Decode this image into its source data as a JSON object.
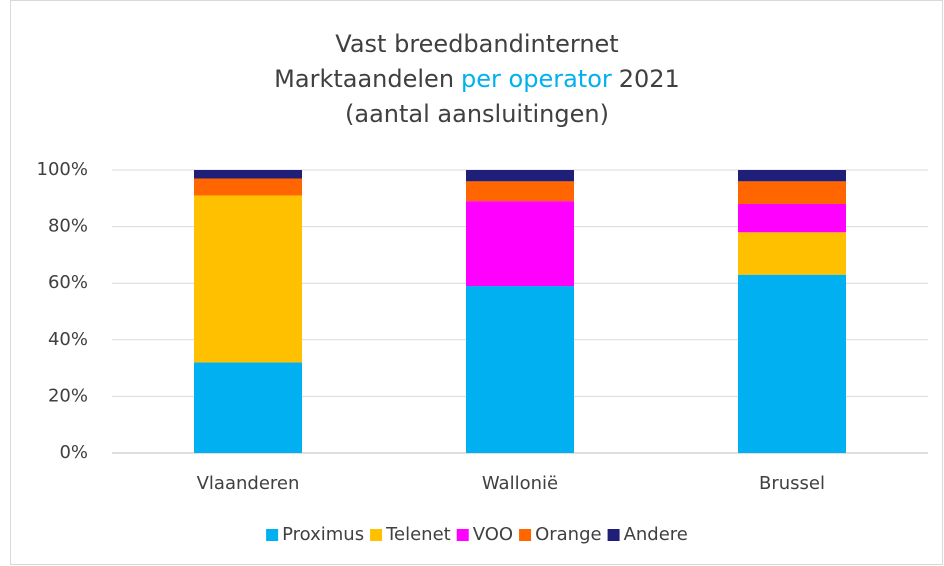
{
  "chart_data": {
    "type": "stacked_bar",
    "title": [
      [
        {
          "text": "Vast breedbandinternet",
          "color": "#404040"
        }
      ],
      [
        {
          "text": "Marktaandelen",
          "color": "#404040"
        },
        {
          "text": "per operator",
          "color": "#00b0f0"
        },
        {
          "text": "2021",
          "color": "#404040"
        }
      ],
      [
        {
          "text": "(aantal aansluitingen)",
          "color": "#404040"
        }
      ]
    ],
    "categories": [
      "Vlaanderen",
      "Wallonië",
      "Brussel"
    ],
    "series": [
      {
        "name": "Proximus",
        "color": "#00b0f0",
        "values": [
          32,
          59,
          63
        ]
      },
      {
        "name": "Telenet",
        "color": "#ffc000",
        "values": [
          59,
          0,
          15
        ]
      },
      {
        "name": "VOO",
        "color": "#ff00ff",
        "values": [
          0,
          30,
          10
        ]
      },
      {
        "name": "Orange",
        "color": "#ff6600",
        "values": [
          6,
          7,
          8
        ]
      },
      {
        "name": "Andere",
        "color": "#1f1f7a",
        "values": [
          3,
          4,
          4
        ]
      }
    ],
    "ylim": [
      0,
      100
    ],
    "yticks": [
      {
        "value": 0,
        "label": "0%"
      },
      {
        "value": 20,
        "label": "20%"
      },
      {
        "value": 40,
        "label": "40%"
      },
      {
        "value": 60,
        "label": "60%"
      },
      {
        "value": 80,
        "label": "80%"
      },
      {
        "value": 100,
        "label": "100%"
      }
    ],
    "grid": true,
    "legend": "bottom"
  }
}
